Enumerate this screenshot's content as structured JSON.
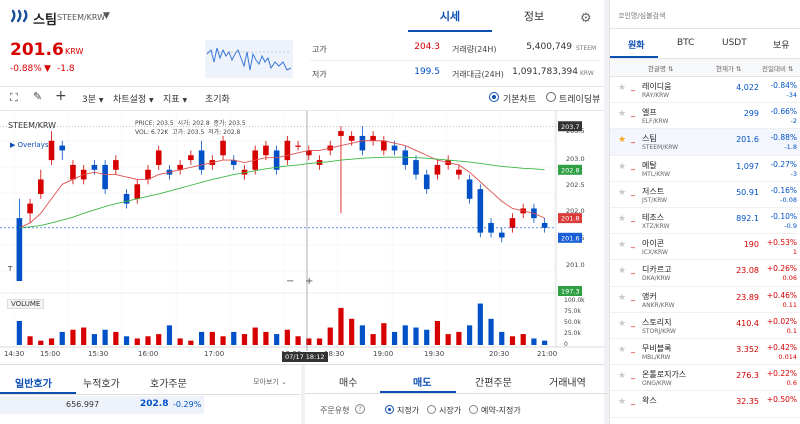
{
  "header": {
    "coin_name": "스팀",
    "pair": "STEEM/KRW",
    "price": "201.6",
    "unit": "KRW",
    "change_pct": "-0.88%",
    "change_arrow": "▼",
    "change_abs": "-1.8"
  },
  "main_tabs": [
    "시세",
    "정보"
  ],
  "stats": {
    "high_label": "고가",
    "high": "204.3",
    "low_label": "저가",
    "low": "199.5",
    "vol_label": "거래량(24H)",
    "vol": "5,400,749",
    "vol_unit": "STEEM",
    "amt_label": "거래대금(24H)",
    "amt": "1,091,783,394",
    "amt_unit": "KRW"
  },
  "toolbar": {
    "interval": "3분",
    "chart_settings": "차트설정",
    "indicator": "지표",
    "reset": "초기화",
    "basic_chart": "기본차트",
    "tradingview": "트레이딩뷰"
  },
  "chart_info": {
    "pair": "STEEM/KRW",
    "overlays": "Overlays",
    "price_label": "PRICE:",
    "price": "203.5",
    "open_label": "시가:",
    "open": "202.8",
    "close_label": "종가:",
    "close": "203.5",
    "vol_label": "VOL:",
    "vol": "6.72K",
    "high_label": "고가:",
    "high": "203.5",
    "low_label": "저가:",
    "low": "202.8",
    "volume_label": "VOLUME",
    "crosshair_time": "07/17 18:12"
  },
  "chart_data": {
    "type": "candlestick",
    "title": "STEEM/KRW",
    "y_ticks": [
      "203.5",
      "203.0",
      "202.5",
      "202.0",
      "201.5",
      "201.0"
    ],
    "x_ticks": [
      "14:30",
      "15:00",
      "15:30",
      "16:00",
      "17:00",
      "18:00",
      "18:30",
      "19:00",
      "19:30",
      "20:30",
      "21:00"
    ],
    "price_tags": {
      "high": "203.7",
      "ma_green": "202.8",
      "ma_red": "201.8",
      "last": "201.6",
      "low": "197.3"
    },
    "vol_ticks": [
      "100.0k",
      "75.0k",
      "50.0k",
      "25.0k",
      "0"
    ],
    "price_range": [
      200.5,
      203.85
    ],
    "candles": [
      [
        201.8,
        200.5,
        202.2,
        200.6
      ],
      [
        201.9,
        202.1,
        202.2,
        201.7
      ],
      [
        202.3,
        202.6,
        202.8,
        202.2
      ],
      [
        203.0,
        203.4,
        203.6,
        202.9
      ],
      [
        203.3,
        203.2,
        203.4,
        203.0
      ],
      [
        202.6,
        202.9,
        203.0,
        202.5
      ],
      [
        202.6,
        202.8,
        202.9,
        202.5
      ],
      [
        202.9,
        202.8,
        203.0,
        202.7
      ],
      [
        202.9,
        202.4,
        203.0,
        202.3
      ],
      [
        202.8,
        203.0,
        203.1,
        202.7
      ],
      [
        202.3,
        202.1,
        202.4,
        202.0
      ],
      [
        202.2,
        202.5,
        202.6,
        202.1
      ],
      [
        202.6,
        202.8,
        202.9,
        202.5
      ],
      [
        202.9,
        203.2,
        203.3,
        202.8
      ],
      [
        202.8,
        202.7,
        202.9,
        202.6
      ],
      [
        202.8,
        202.9,
        203.0,
        202.7
      ],
      [
        203.0,
        203.1,
        203.2,
        202.9
      ],
      [
        203.2,
        202.8,
        203.4,
        202.7
      ],
      [
        202.9,
        203.0,
        203.1,
        202.8
      ],
      [
        203.1,
        203.4,
        203.5,
        203.0
      ],
      [
        203.0,
        202.9,
        203.1,
        202.8
      ],
      [
        202.7,
        202.8,
        202.9,
        202.6
      ],
      [
        202.8,
        203.2,
        203.3,
        202.7
      ],
      [
        203.1,
        203.3,
        203.4,
        203.0
      ],
      [
        203.2,
        202.8,
        203.3,
        202.7
      ],
      [
        203.0,
        203.4,
        203.5,
        202.9
      ],
      [
        203.3,
        203.3,
        203.4,
        203.2
      ],
      [
        203.1,
        203.2,
        203.3,
        203.0
      ],
      [
        202.9,
        203.0,
        203.1,
        202.8
      ],
      [
        203.2,
        203.3,
        203.4,
        203.1
      ],
      [
        203.5,
        203.6,
        203.7,
        201.9
      ],
      [
        203.4,
        203.5,
        203.6,
        203.3
      ],
      [
        203.5,
        203.2,
        203.7,
        203.1
      ],
      [
        203.4,
        203.5,
        203.6,
        203.3
      ],
      [
        203.2,
        203.4,
        203.5,
        203.1
      ],
      [
        203.3,
        203.2,
        203.4,
        203.1
      ],
      [
        203.2,
        202.9,
        203.3,
        202.8
      ],
      [
        203.0,
        202.7,
        203.1,
        202.6
      ],
      [
        202.7,
        202.4,
        202.8,
        202.3
      ],
      [
        202.7,
        202.9,
        203.0,
        202.6
      ],
      [
        202.9,
        203.0,
        203.1,
        202.8
      ],
      [
        202.7,
        202.8,
        202.9,
        202.6
      ],
      [
        202.6,
        202.2,
        202.7,
        202.1
      ],
      [
        202.4,
        201.5,
        202.5,
        201.4
      ],
      [
        201.7,
        201.5,
        201.8,
        201.4
      ],
      [
        201.5,
        201.4,
        201.6,
        201.3
      ],
      [
        201.6,
        201.8,
        201.9,
        201.5
      ],
      [
        201.9,
        202.0,
        202.1,
        201.8
      ],
      [
        202.0,
        201.8,
        202.1,
        201.7
      ],
      [
        201.7,
        201.6,
        201.8,
        201.5
      ]
    ],
    "ma_red": [
      201.6,
      201.7,
      201.9,
      202.2,
      202.5,
      202.6,
      202.7,
      202.75,
      202.7,
      202.7,
      202.65,
      202.6,
      202.6,
      202.7,
      202.75,
      202.8,
      202.85,
      202.9,
      202.95,
      203.0,
      203.0,
      202.95,
      203.0,
      203.05,
      203.05,
      203.1,
      203.15,
      203.2,
      203.2,
      203.25,
      203.3,
      203.35,
      203.4,
      203.4,
      203.4,
      203.35,
      203.3,
      203.2,
      203.1,
      203.0,
      202.95,
      202.9,
      202.75,
      202.55,
      202.35,
      202.15,
      202.0,
      201.95,
      201.9,
      201.8
    ],
    "ma_green": [
      201.6,
      201.62,
      201.65,
      201.7,
      201.76,
      201.82,
      201.9,
      201.97,
      202.04,
      202.1,
      202.15,
      202.2,
      202.25,
      202.3,
      202.36,
      202.42,
      202.48,
      202.54,
      202.6,
      202.65,
      202.7,
      202.74,
      202.78,
      202.82,
      202.85,
      202.88,
      202.9,
      202.93,
      202.95,
      202.97,
      203.0,
      203.02,
      203.04,
      203.05,
      203.06,
      203.06,
      203.06,
      203.05,
      203.04,
      203.02,
      203.0,
      202.98,
      202.96,
      202.93,
      202.9,
      202.87,
      202.85,
      202.83,
      202.82,
      202.8
    ],
    "volumes": [
      55,
      20,
      10,
      15,
      30,
      35,
      40,
      25,
      35,
      30,
      20,
      15,
      20,
      25,
      45,
      15,
      10,
      30,
      30,
      20,
      30,
      25,
      40,
      30,
      25,
      35,
      20,
      15,
      15,
      40,
      85,
      60,
      45,
      25,
      50,
      30,
      45,
      40,
      35,
      55,
      25,
      30,
      45,
      95,
      60,
      30,
      20,
      25,
      15,
      10
    ],
    "vol_max": 110
  },
  "orderbook_tabs": [
    "일반호가",
    "누적호가",
    "호가주문"
  ],
  "orderbook_more": "모아보기",
  "orderbook_row": {
    "qty": "656.997",
    "price": "202.8",
    "pct": "-0.29%"
  },
  "trade_tabs": [
    "매수",
    "매도",
    "간편주문",
    "거래내역"
  ],
  "order_type": {
    "label": "주문유형",
    "options": [
      "지정가",
      "시장가",
      "예약-지정가"
    ]
  },
  "search": {
    "placeholder": "코인명/심볼검색"
  },
  "market_tabs": [
    "원화",
    "BTC",
    "USDT",
    "보유"
  ],
  "list_header": {
    "name": "한글명",
    "price": "현재가",
    "change": "전일대비"
  },
  "coins": [
    {
      "name": "레이디움",
      "sym": "RAY/KRW",
      "price": "4,022",
      "pct": "-0.84%",
      "chg": "-34",
      "dir": "down",
      "fav": false
    },
    {
      "name": "엘프",
      "sym": "ELF/KRW",
      "price": "299",
      "pct": "-0.66%",
      "chg": "-2",
      "dir": "down",
      "fav": false
    },
    {
      "name": "스팀",
      "sym": "STEEM/KRW",
      "price": "201.6",
      "pct": "-0.88%",
      "chg": "-1.8",
      "dir": "down",
      "fav": true
    },
    {
      "name": "메탈",
      "sym": "MTL/KRW",
      "price": "1,097",
      "pct": "-0.27%",
      "chg": "-3",
      "dir": "down",
      "fav": false
    },
    {
      "name": "저스트",
      "sym": "JST/KRW",
      "price": "50.91",
      "pct": "-0.16%",
      "chg": "-0.08",
      "dir": "down",
      "fav": false
    },
    {
      "name": "테조스",
      "sym": "XTZ/KRW",
      "price": "892.1",
      "pct": "-0.10%",
      "chg": "-0.9",
      "dir": "down",
      "fav": false
    },
    {
      "name": "아이콘",
      "sym": "ICX/KRW",
      "price": "190",
      "pct": "+0.53%",
      "chg": "1",
      "dir": "up",
      "fav": false
    },
    {
      "name": "디카르고",
      "sym": "DKA/KRW",
      "price": "23.08",
      "pct": "+0.26%",
      "chg": "0.06",
      "dir": "up",
      "fav": false
    },
    {
      "name": "앵커",
      "sym": "ANKR/KRW",
      "price": "23.89",
      "pct": "+0.46%",
      "chg": "0.11",
      "dir": "up",
      "fav": false
    },
    {
      "name": "스토리지",
      "sym": "STORJ/KRW",
      "price": "410.4",
      "pct": "+0.02%",
      "chg": "0.1",
      "dir": "up",
      "fav": false
    },
    {
      "name": "무비블록",
      "sym": "MBL/KRW",
      "price": "3.352",
      "pct": "+0.42%",
      "chg": "0.014",
      "dir": "up",
      "fav": false
    },
    {
      "name": "온톨로지가스",
      "sym": "ONG/KRW",
      "price": "276.3",
      "pct": "+0.22%",
      "chg": "0.6",
      "dir": "up",
      "fav": false
    },
    {
      "name": "왁스",
      "sym": "",
      "price": "32.35",
      "pct": "+0.50%",
      "chg": "",
      "dir": "up",
      "fav": false
    }
  ]
}
